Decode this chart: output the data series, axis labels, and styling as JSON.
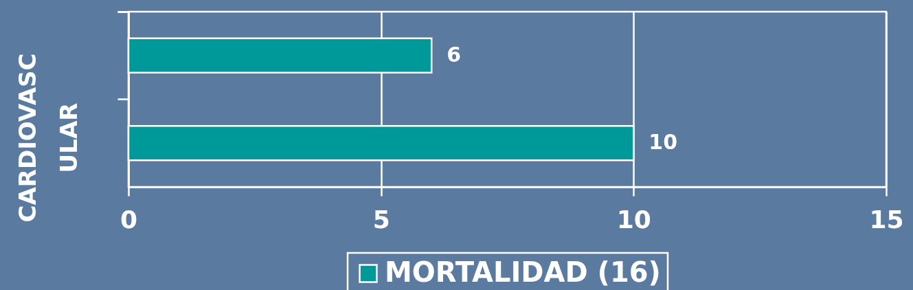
{
  "chart_data": {
    "type": "bar",
    "orientation": "horizontal",
    "ylabel": "CARDIOVASC\nULAR",
    "categories": [
      null,
      null
    ],
    "series": [
      {
        "name": "MORTALIDAD (16)",
        "color": "#009999",
        "values": [
          6,
          10
        ]
      }
    ],
    "xlim": [
      0,
      15
    ],
    "xticks": [
      0,
      5,
      10,
      15
    ],
    "grid": "x",
    "legend": "bottom",
    "data_labels": true
  }
}
